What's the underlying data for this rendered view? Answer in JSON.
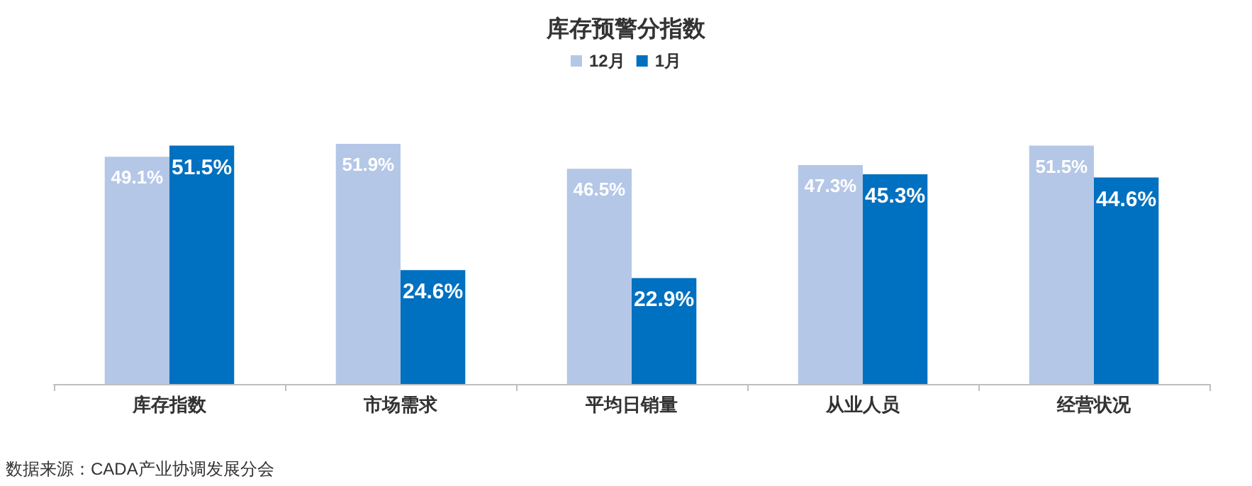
{
  "chart_data": {
    "type": "bar",
    "title": "库存预警分指数",
    "categories": [
      "库存指数",
      "市场需求",
      "平均日销量",
      "从业人员",
      "经营状况"
    ],
    "series": [
      {
        "name": "12月",
        "color": "#b4c7e7",
        "values": [
          49.1,
          51.9,
          46.5,
          47.3,
          51.5
        ],
        "value_labels": [
          "49.1%",
          "51.9%",
          "46.5%",
          "47.3%",
          "51.5%"
        ]
      },
      {
        "name": "1月",
        "color": "#0070c0",
        "values": [
          51.5,
          24.6,
          22.9,
          45.3,
          44.6
        ],
        "value_labels": [
          "51.5%",
          "24.6%",
          "22.9%",
          "45.3%",
          "44.6%"
        ]
      }
    ],
    "grid": false,
    "legend": "top",
    "annotations": [
      "数据来源：CADA产业协调发展分会"
    ]
  }
}
